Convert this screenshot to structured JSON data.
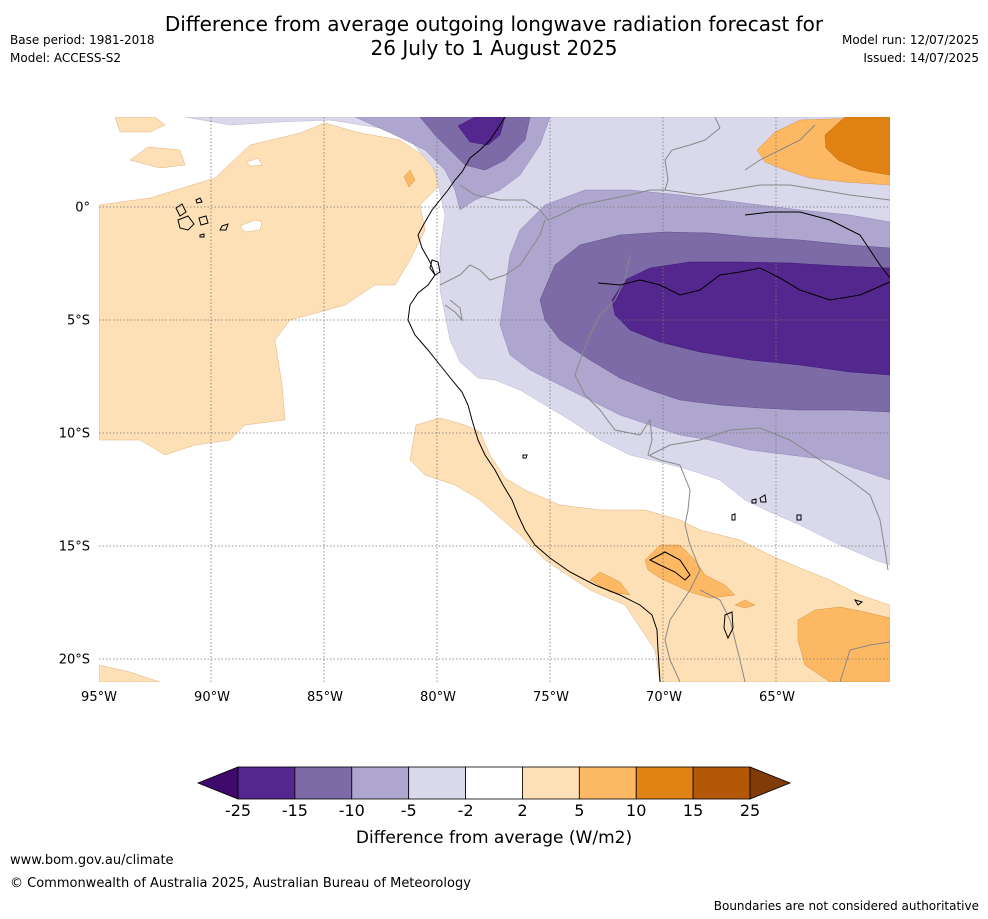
{
  "header": {
    "title_line1": "Difference from average outgoing longwave radiation forecast for",
    "title_line2": "26 July to 1 August 2025",
    "base_period": "Base period: 1981-2018",
    "model": "Model: ACCESS-S2",
    "model_run": "Model run: 12/07/2025",
    "issued": "Issued: 14/07/2025"
  },
  "map": {
    "region": "Western South America",
    "lon_range": [
      -95,
      -60
    ],
    "lat_range": [
      -21,
      4
    ],
    "lon_ticks": [
      {
        "value": -95,
        "label": "95°W"
      },
      {
        "value": -90,
        "label": "90°W"
      },
      {
        "value": -85,
        "label": "85°W"
      },
      {
        "value": -80,
        "label": "80°W"
      },
      {
        "value": -75,
        "label": "75°W"
      },
      {
        "value": -70,
        "label": "70°W"
      },
      {
        "value": -65,
        "label": "65°W"
      }
    ],
    "lat_ticks": [
      {
        "value": 0,
        "label": "0°"
      },
      {
        "value": -5,
        "label": "5°S"
      },
      {
        "value": -10,
        "label": "10°S"
      },
      {
        "value": -15,
        "label": "15°S"
      },
      {
        "value": -20,
        "label": "20°S"
      }
    ],
    "grid": true
  },
  "colorbar": {
    "label": "Difference from average (W/m2)",
    "tick_labels": [
      "-25",
      "-15",
      "-10",
      "-5",
      "-2",
      "2",
      "5",
      "10",
      "15",
      "25"
    ],
    "colors": [
      "#3f0a6b",
      "#54278f",
      "#7d6ba8",
      "#aea6cf",
      "#d9d9eb",
      "#ffffff",
      "#fee0b6",
      "#fdb863",
      "#e08214",
      "#b35806",
      "#7f3b08"
    ],
    "extend": "both"
  },
  "footer": {
    "website": "www.bom.gov.au/climate",
    "copyright": "© Commonwealth of Australia 2025, Australian Bureau of Meteorology",
    "disclaimer": "Boundaries are not considered authoritative"
  }
}
